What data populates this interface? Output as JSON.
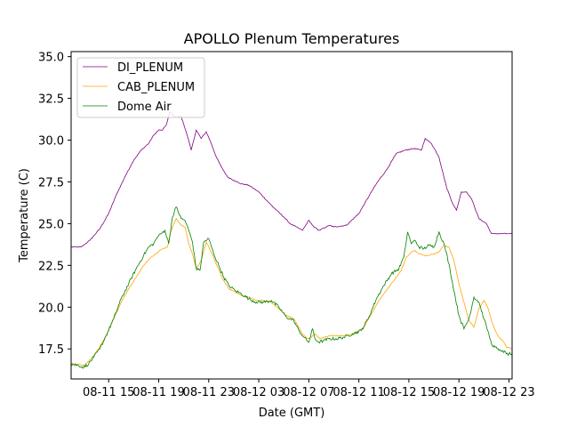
{
  "chart_data": {
    "type": "line",
    "title": "APOLLO Plenum Temperatures",
    "xlabel": "Date (GMT)",
    "ylabel": "Temperature (C)",
    "xlim_hours": [
      12.0,
      47.25
    ],
    "ylim": [
      15.7,
      35.3
    ],
    "x_ticks": [
      {
        "label": "08-11 15",
        "hour": 15
      },
      {
        "label": "08-11 19",
        "hour": 19
      },
      {
        "label": "08-11 23",
        "hour": 23
      },
      {
        "label": "08-12 03",
        "hour": 27
      },
      {
        "label": "08-12 07",
        "hour": 31
      },
      {
        "label": "08-12 11",
        "hour": 35
      },
      {
        "label": "08-12 15",
        "hour": 39
      },
      {
        "label": "08-12 19",
        "hour": 43
      },
      {
        "label": "08-12 23",
        "hour": 47
      }
    ],
    "y_ticks": [
      {
        "label": "17.5",
        "value": 17.5
      },
      {
        "label": "20.0",
        "value": 20.0
      },
      {
        "label": "22.5",
        "value": 22.5
      },
      {
        "label": "25.0",
        "value": 25.0
      },
      {
        "label": "27.5",
        "value": 27.5
      },
      {
        "label": "30.0",
        "value": 30.0
      },
      {
        "label": "32.5",
        "value": 32.5
      },
      {
        "label": "35.0",
        "value": 35.0
      }
    ],
    "legend_position": "top-left",
    "series": [
      {
        "name": "DI_PLENUM",
        "color": "#800080",
        "x": [
          12.0,
          12.8,
          13.5,
          14.3,
          15.0,
          15.6,
          16.3,
          17.0,
          17.6,
          18.2,
          18.6,
          19.0,
          19.3,
          19.6,
          19.9,
          20.3,
          20.8,
          21.2,
          21.6,
          22.0,
          22.4,
          22.8,
          23.2,
          23.6,
          24.0,
          24.5,
          25.0,
          25.5,
          26.2,
          27.0,
          28.0,
          29.0,
          29.5,
          30.0,
          30.5,
          31.0,
          31.4,
          31.8,
          32.1,
          32.4,
          32.7,
          33.0,
          34.0,
          35.0,
          36.0,
          36.5,
          37.2,
          38.0,
          38.7,
          39.4,
          40.0,
          40.3,
          40.8,
          41.4,
          42.0,
          42.5,
          42.8,
          43.2,
          43.6,
          44.0,
          44.6,
          45.2,
          45.6,
          46.0,
          46.4,
          46.8,
          47.0,
          47.25
        ],
        "y": [
          23.6,
          23.6,
          24.0,
          24.7,
          25.6,
          26.7,
          27.8,
          28.8,
          29.4,
          29.8,
          30.3,
          30.6,
          30.6,
          30.9,
          31.7,
          31.4,
          31.4,
          30.5,
          29.4,
          30.6,
          30.1,
          30.5,
          29.8,
          29.0,
          28.4,
          27.8,
          27.6,
          27.4,
          27.3,
          26.9,
          26.1,
          25.4,
          25.0,
          24.8,
          24.6,
          25.2,
          24.8,
          24.6,
          24.7,
          24.8,
          24.9,
          24.8,
          24.9,
          25.6,
          26.9,
          27.5,
          28.2,
          29.2,
          29.4,
          29.5,
          29.4,
          30.1,
          29.8,
          29.0,
          27.2,
          26.2,
          25.8,
          26.9,
          26.9,
          26.5,
          25.3,
          25.0,
          24.4,
          24.4,
          24.4,
          24.4,
          24.4,
          24.4
        ]
      },
      {
        "name": "CAB_PLENUM",
        "color": "#ffa500",
        "x": [
          12.0,
          12.6,
          13.0,
          13.6,
          14.2,
          14.8,
          15.4,
          16.0,
          16.6,
          17.2,
          17.8,
          18.4,
          18.8,
          19.1,
          19.4,
          19.7,
          20.0,
          20.4,
          20.8,
          21.1,
          21.4,
          21.7,
          22.0,
          22.4,
          22.8,
          23.2,
          23.6,
          24.1,
          24.6,
          25.1,
          25.6,
          26.2,
          26.8,
          27.4,
          28.0,
          28.6,
          29.2,
          29.8,
          30.2,
          30.5,
          30.9,
          31.2,
          31.5,
          31.9,
          32.3,
          32.8,
          33.4,
          34.0,
          34.8,
          35.4,
          36.0,
          36.6,
          37.2,
          37.8,
          38.4,
          38.8,
          39.2,
          39.5,
          39.8,
          40.2,
          40.6,
          41.0,
          41.4,
          41.8,
          42.2,
          42.6,
          43.0,
          43.4,
          43.8,
          44.2,
          44.6,
          45.0,
          45.3,
          45.6,
          45.9,
          46.2,
          46.5,
          46.8,
          47.0,
          47.25
        ],
        "y": [
          16.6,
          16.6,
          16.5,
          16.9,
          17.5,
          18.3,
          19.3,
          20.3,
          21.1,
          21.8,
          22.5,
          23.0,
          23.2,
          23.4,
          23.5,
          23.6,
          24.6,
          25.3,
          24.9,
          24.8,
          23.8,
          23.2,
          22.3,
          22.8,
          23.9,
          23.3,
          22.6,
          21.7,
          21.1,
          20.9,
          20.7,
          20.6,
          20.4,
          20.4,
          20.3,
          19.9,
          19.5,
          19.3,
          18.8,
          18.4,
          18.1,
          18.2,
          18.4,
          18.1,
          18.2,
          18.3,
          18.3,
          18.3,
          18.5,
          18.8,
          19.6,
          20.4,
          21.0,
          21.6,
          22.2,
          23.0,
          23.3,
          23.4,
          23.2,
          23.1,
          23.1,
          23.2,
          23.3,
          23.7,
          23.6,
          22.8,
          21.4,
          20.3,
          19.2,
          18.8,
          19.9,
          20.4,
          20.0,
          19.2,
          18.6,
          18.2,
          18.0,
          17.6,
          17.6,
          17.5
        ]
      },
      {
        "name": "Dome Air",
        "color": "#008000",
        "x": [
          12.0,
          12.6,
          13.0,
          13.4,
          13.8,
          14.3,
          14.8,
          15.4,
          16.0,
          16.6,
          17.2,
          17.8,
          18.2,
          18.6,
          18.9,
          19.2,
          19.5,
          19.8,
          20.1,
          20.4,
          20.8,
          21.1,
          21.4,
          21.7,
          22.0,
          22.3,
          22.6,
          23.0,
          23.4,
          23.8,
          24.2,
          24.6,
          25.1,
          25.6,
          26.2,
          26.8,
          27.4,
          28.0,
          28.6,
          29.2,
          29.8,
          30.2,
          30.6,
          31.0,
          31.3,
          31.5,
          31.8,
          32.2,
          32.6,
          33.2,
          33.8,
          34.5,
          35.2,
          35.8,
          36.4,
          37.0,
          37.6,
          38.2,
          38.6,
          38.9,
          39.2,
          39.5,
          39.8,
          40.2,
          40.6,
          41.0,
          41.4,
          41.8,
          42.2,
          42.6,
          43.0,
          43.4,
          43.8,
          44.2,
          44.6,
          45.0,
          45.3,
          45.6,
          45.9,
          46.2,
          46.5,
          46.8,
          47.0,
          47.25
        ],
        "y": [
          16.6,
          16.5,
          16.4,
          16.6,
          17.0,
          17.5,
          18.3,
          19.3,
          20.5,
          21.4,
          22.3,
          23.1,
          23.6,
          23.8,
          24.2,
          24.4,
          24.6,
          23.8,
          25.4,
          26.0,
          25.3,
          25.2,
          24.6,
          23.9,
          22.3,
          22.2,
          23.9,
          24.1,
          23.2,
          22.5,
          21.8,
          21.3,
          21.0,
          20.8,
          20.5,
          20.3,
          20.3,
          20.4,
          20.0,
          19.4,
          19.2,
          18.6,
          18.2,
          17.9,
          18.7,
          18.1,
          17.9,
          18.0,
          18.1,
          18.1,
          18.2,
          18.4,
          18.6,
          19.4,
          20.5,
          21.3,
          22.0,
          22.3,
          23.0,
          24.5,
          23.8,
          24.0,
          23.6,
          23.5,
          23.7,
          23.6,
          24.5,
          23.8,
          22.6,
          21.0,
          19.5,
          18.7,
          19.3,
          20.6,
          20.3,
          19.3,
          18.6,
          17.8,
          17.6,
          17.4,
          17.4,
          17.2,
          17.2,
          17.2
        ]
      }
    ]
  }
}
